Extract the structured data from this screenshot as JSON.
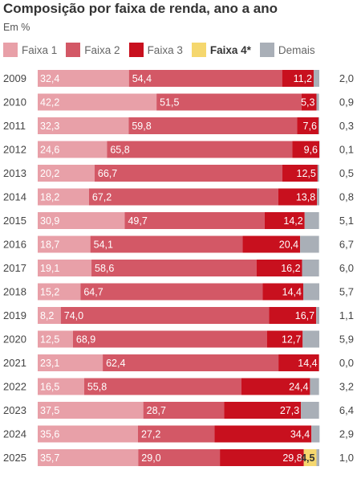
{
  "title": "Composição por faixa de renda, ano a ano",
  "subtitle": "Em %",
  "chart_data": {
    "type": "bar",
    "orientation": "horizontal",
    "stacked": true,
    "title": "Composição por faixa de renda, ano a ano",
    "subtitle": "Em %",
    "categories": [
      "2009",
      "2010",
      "2011",
      "2012",
      "2013",
      "2014",
      "2015",
      "2016",
      "2017",
      "2018",
      "2019",
      "2020",
      "2021",
      "2022",
      "2023",
      "2024",
      "2025"
    ],
    "xlim": [
      0,
      100
    ],
    "grid": false,
    "legend_position": "top",
    "series": [
      {
        "name": "Faixa 1",
        "color": "#e8a0a8",
        "label_color": "#ffffff",
        "bold": false,
        "values": [
          32.4,
          42.2,
          32.3,
          24.6,
          20.2,
          18.2,
          30.9,
          18.7,
          19.1,
          15.2,
          8.2,
          12.5,
          23.1,
          16.5,
          37.5,
          35.6,
          35.7
        ],
        "labels": [
          "32,4",
          "42,2",
          "32,3",
          "24,6",
          "20,2",
          "18,2",
          "30,9",
          "18,7",
          "19,1",
          "15,2",
          "8,2",
          "12,5",
          "23,1",
          "16,5",
          "37,5",
          "35,6",
          "35,7"
        ]
      },
      {
        "name": "Faixa 2",
        "color": "#d35866",
        "label_color": "#ffffff",
        "bold": false,
        "values": [
          54.4,
          51.5,
          59.8,
          65.8,
          66.7,
          67.2,
          49.7,
          54.1,
          58.6,
          64.7,
          74.0,
          68.9,
          62.4,
          55.8,
          28.7,
          27.2,
          29.0
        ],
        "labels": [
          "54,4",
          "51,5",
          "59,8",
          "65,8",
          "66,7",
          "67,2",
          "49,7",
          "54,1",
          "58,6",
          "64,7",
          "74,0",
          "68,9",
          "62,4",
          "55,8",
          "28,7",
          "27,2",
          "29,0"
        ]
      },
      {
        "name": "Faixa 3",
        "color": "#c8101e",
        "label_color": "#ffffff",
        "bold": false,
        "values": [
          11.2,
          5.3,
          7.6,
          9.6,
          12.5,
          13.8,
          14.2,
          20.4,
          16.2,
          14.4,
          16.7,
          12.7,
          14.4,
          24.4,
          27.3,
          34.4,
          29.8
        ],
        "labels": [
          "11,2",
          "5,3",
          "7,6",
          "9,6",
          "12,5",
          "13,8",
          "14,2",
          "20,4",
          "16,2",
          "14,4",
          "16,7",
          "12,7",
          "14,4",
          "24,4",
          "27,3",
          "34,4",
          "29,8"
        ]
      },
      {
        "name": "Faixa 4*",
        "color": "#f5d76e",
        "label_color": "#333333",
        "bold": true,
        "values": [
          0,
          0,
          0,
          0,
          0,
          0,
          0,
          0,
          0,
          0,
          0,
          0,
          0,
          0,
          0,
          0,
          4.5
        ],
        "labels": [
          "",
          "",
          "",
          "",
          "",
          "",
          "",
          "",
          "",
          "",
          "",
          "",
          "",
          "",
          "",
          "",
          "4,5"
        ]
      },
      {
        "name": "Demais",
        "color": "#a9afb7",
        "label_color": "#444444",
        "bold": false,
        "values": [
          2.0,
          0.9,
          0.3,
          0.1,
          0.5,
          0.8,
          5.1,
          6.7,
          6.0,
          5.7,
          1.1,
          5.9,
          0.0,
          3.2,
          6.4,
          2.9,
          1.0
        ],
        "labels": [
          "2,0",
          "0,9",
          "0,3",
          "0,1",
          "0,5",
          "0,8",
          "5,1",
          "6,7",
          "6,0",
          "5,7",
          "1,1",
          "5,9",
          "0,0",
          "3,2",
          "6,4",
          "2,9",
          "1,0"
        ]
      }
    ]
  }
}
